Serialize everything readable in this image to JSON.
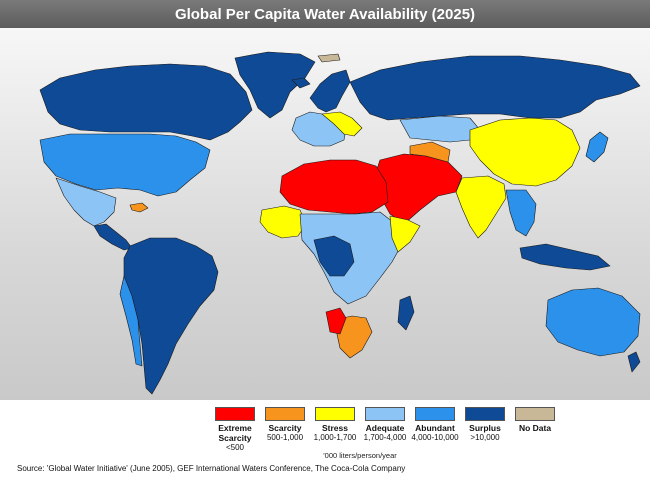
{
  "title": "Global Per Capita Water Availability (2025)",
  "legend": {
    "units": "'000 liters/person/year",
    "categories": [
      {
        "key": "extreme",
        "name": "Extreme Scarcity",
        "range": "<500",
        "color": "#ff0000"
      },
      {
        "key": "scarcity",
        "name": "Scarcity",
        "range": "500-1,000",
        "color": "#f7941d"
      },
      {
        "key": "stress",
        "name": "Stress",
        "range": "1,000-1,700",
        "color": "#ffff00"
      },
      {
        "key": "adequate",
        "name": "Adequate",
        "range": "1,700-4,000",
        "color": "#8cc4f5"
      },
      {
        "key": "abundant",
        "name": "Abundant",
        "range": "4,000-10,000",
        "color": "#2b91ea"
      },
      {
        "key": "surplus",
        "name": "Surplus",
        "range": ">10,000",
        "color": "#0f4a96"
      },
      {
        "key": "nodata",
        "name": "No Data",
        "range": "",
        "color": "#c8b898"
      }
    ]
  },
  "source": "Source:  'Global Water Initiative' (June 2005), GEF International Waters Conference, The Coca-Cola Company"
}
